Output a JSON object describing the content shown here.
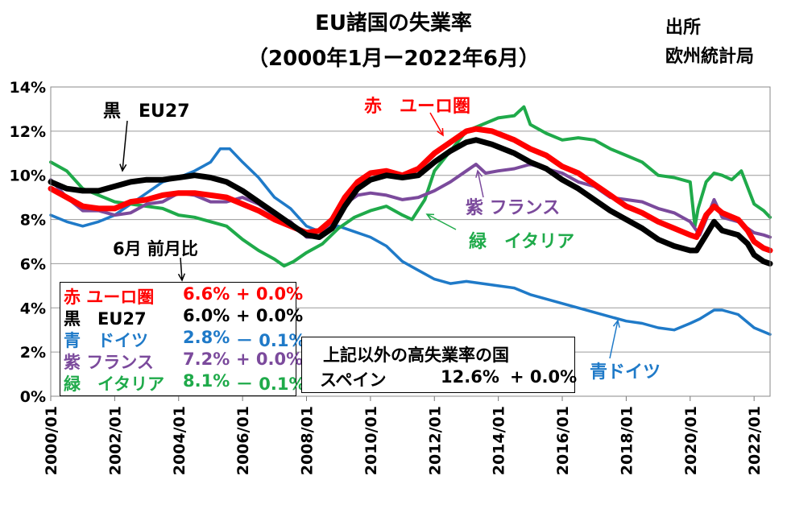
{
  "title_line1": "EU諸国の失業率",
  "title_line2": "（2000年1月ー2022年6月）",
  "source_line1": "出所",
  "source_line2": "欧州統計局",
  "chart_data": {
    "type": "line",
    "ylim": [
      0,
      14
    ],
    "y_ticks": [
      "0%",
      "2%",
      "4%",
      "6%",
      "8%",
      "10%",
      "12%",
      "14%"
    ],
    "x_ticks": [
      "2000/01",
      "2002/01",
      "2004/01",
      "2006/01",
      "2008/01",
      "2010/01",
      "2012/01",
      "2014/01",
      "2016/01",
      "2018/01",
      "2020/01",
      "2022/01"
    ],
    "x_range": [
      "2000/01",
      "2022/06"
    ],
    "grid": "horizontal",
    "series": [
      {
        "name": "EU27",
        "color": "#000000",
        "points": [
          [
            2000.0,
            9.7
          ],
          [
            2000.5,
            9.4
          ],
          [
            2001.0,
            9.3
          ],
          [
            2001.5,
            9.3
          ],
          [
            2002.0,
            9.5
          ],
          [
            2002.5,
            9.7
          ],
          [
            2003.0,
            9.8
          ],
          [
            2003.5,
            9.8
          ],
          [
            2004.0,
            9.9
          ],
          [
            2004.5,
            10.0
          ],
          [
            2005.0,
            9.9
          ],
          [
            2005.5,
            9.7
          ],
          [
            2006.0,
            9.3
          ],
          [
            2006.5,
            8.8
          ],
          [
            2007.0,
            8.3
          ],
          [
            2007.5,
            7.8
          ],
          [
            2008.0,
            7.3
          ],
          [
            2008.4,
            7.2
          ],
          [
            2008.8,
            7.6
          ],
          [
            2009.2,
            8.6
          ],
          [
            2009.6,
            9.4
          ],
          [
            2010.0,
            9.8
          ],
          [
            2010.5,
            10.0
          ],
          [
            2011.0,
            9.9
          ],
          [
            2011.5,
            10.0
          ],
          [
            2012.0,
            10.6
          ],
          [
            2012.5,
            11.1
          ],
          [
            2013.0,
            11.5
          ],
          [
            2013.3,
            11.6
          ],
          [
            2013.8,
            11.4
          ],
          [
            2014.5,
            11.0
          ],
          [
            2015.0,
            10.6
          ],
          [
            2015.5,
            10.3
          ],
          [
            2016.0,
            9.8
          ],
          [
            2016.5,
            9.4
          ],
          [
            2017.0,
            8.9
          ],
          [
            2017.5,
            8.4
          ],
          [
            2018.0,
            8.0
          ],
          [
            2018.5,
            7.6
          ],
          [
            2019.0,
            7.1
          ],
          [
            2019.5,
            6.8
          ],
          [
            2020.0,
            6.6
          ],
          [
            2020.2,
            6.6
          ],
          [
            2020.5,
            7.3
          ],
          [
            2020.75,
            7.9
          ],
          [
            2021.0,
            7.5
          ],
          [
            2021.5,
            7.3
          ],
          [
            2021.8,
            6.9
          ],
          [
            2022.0,
            6.4
          ],
          [
            2022.3,
            6.1
          ],
          [
            2022.5,
            6.0
          ]
        ]
      },
      {
        "name": "ユーロ圏",
        "color": "#ff0000",
        "points": [
          [
            2000.0,
            9.4
          ],
          [
            2000.5,
            9.0
          ],
          [
            2001.0,
            8.6
          ],
          [
            2001.5,
            8.5
          ],
          [
            2002.0,
            8.5
          ],
          [
            2002.5,
            8.8
          ],
          [
            2003.0,
            8.9
          ],
          [
            2003.5,
            9.1
          ],
          [
            2004.0,
            9.2
          ],
          [
            2004.5,
            9.2
          ],
          [
            2005.0,
            9.1
          ],
          [
            2005.5,
            9.0
          ],
          [
            2006.0,
            8.7
          ],
          [
            2006.5,
            8.4
          ],
          [
            2007.0,
            8.0
          ],
          [
            2007.5,
            7.7
          ],
          [
            2008.0,
            7.4
          ],
          [
            2008.4,
            7.5
          ],
          [
            2008.8,
            8.0
          ],
          [
            2009.2,
            9.0
          ],
          [
            2009.6,
            9.7
          ],
          [
            2010.0,
            10.1
          ],
          [
            2010.5,
            10.2
          ],
          [
            2011.0,
            10.0
          ],
          [
            2011.5,
            10.3
          ],
          [
            2012.0,
            11.0
          ],
          [
            2012.5,
            11.5
          ],
          [
            2013.0,
            12.0
          ],
          [
            2013.3,
            12.1
          ],
          [
            2013.8,
            12.0
          ],
          [
            2014.5,
            11.6
          ],
          [
            2015.0,
            11.2
          ],
          [
            2015.5,
            10.9
          ],
          [
            2016.0,
            10.4
          ],
          [
            2016.5,
            10.1
          ],
          [
            2017.0,
            9.6
          ],
          [
            2017.5,
            9.1
          ],
          [
            2018.0,
            8.6
          ],
          [
            2018.5,
            8.3
          ],
          [
            2019.0,
            7.9
          ],
          [
            2019.5,
            7.6
          ],
          [
            2020.0,
            7.3
          ],
          [
            2020.2,
            7.2
          ],
          [
            2020.5,
            8.2
          ],
          [
            2020.75,
            8.6
          ],
          [
            2021.0,
            8.3
          ],
          [
            2021.5,
            8.0
          ],
          [
            2021.8,
            7.5
          ],
          [
            2022.0,
            7.0
          ],
          [
            2022.3,
            6.7
          ],
          [
            2022.5,
            6.6
          ]
        ]
      },
      {
        "name": "ドイツ",
        "color": "#1f7ac8",
        "points": [
          [
            2000.0,
            8.2
          ],
          [
            2000.5,
            7.9
          ],
          [
            2001.0,
            7.7
          ],
          [
            2001.5,
            7.9
          ],
          [
            2002.0,
            8.2
          ],
          [
            2002.5,
            8.7
          ],
          [
            2003.0,
            9.2
          ],
          [
            2003.5,
            9.7
          ],
          [
            2004.0,
            9.9
          ],
          [
            2004.5,
            10.2
          ],
          [
            2005.0,
            10.6
          ],
          [
            2005.3,
            11.2
          ],
          [
            2005.6,
            11.2
          ],
          [
            2006.0,
            10.6
          ],
          [
            2006.5,
            9.9
          ],
          [
            2007.0,
            9.0
          ],
          [
            2007.5,
            8.5
          ],
          [
            2008.0,
            7.7
          ],
          [
            2008.5,
            7.4
          ],
          [
            2009.0,
            7.7
          ],
          [
            2009.4,
            7.5
          ],
          [
            2010.0,
            7.2
          ],
          [
            2010.5,
            6.8
          ],
          [
            2011.0,
            6.1
          ],
          [
            2011.5,
            5.7
          ],
          [
            2012.0,
            5.3
          ],
          [
            2012.5,
            5.1
          ],
          [
            2013.0,
            5.2
          ],
          [
            2013.5,
            5.1
          ],
          [
            2014.0,
            5.0
          ],
          [
            2014.5,
            4.9
          ],
          [
            2015.0,
            4.6
          ],
          [
            2015.5,
            4.4
          ],
          [
            2016.0,
            4.2
          ],
          [
            2016.5,
            4.0
          ],
          [
            2017.0,
            3.8
          ],
          [
            2017.5,
            3.6
          ],
          [
            2018.0,
            3.4
          ],
          [
            2018.5,
            3.3
          ],
          [
            2019.0,
            3.1
          ],
          [
            2019.5,
            3.0
          ],
          [
            2020.0,
            3.3
          ],
          [
            2020.3,
            3.5
          ],
          [
            2020.75,
            3.9
          ],
          [
            2021.0,
            3.9
          ],
          [
            2021.5,
            3.7
          ],
          [
            2022.0,
            3.1
          ],
          [
            2022.5,
            2.8
          ]
        ]
      },
      {
        "name": "フランス",
        "color": "#7b4a9c",
        "points": [
          [
            2000.0,
            9.8
          ],
          [
            2000.5,
            9.0
          ],
          [
            2001.0,
            8.4
          ],
          [
            2001.5,
            8.4
          ],
          [
            2002.0,
            8.2
          ],
          [
            2002.5,
            8.3
          ],
          [
            2003.0,
            8.7
          ],
          [
            2003.5,
            8.8
          ],
          [
            2004.0,
            9.2
          ],
          [
            2004.5,
            9.1
          ],
          [
            2005.0,
            8.8
          ],
          [
            2005.5,
            8.8
          ],
          [
            2006.0,
            9.0
          ],
          [
            2006.5,
            8.7
          ],
          [
            2007.0,
            8.2
          ],
          [
            2007.5,
            7.9
          ],
          [
            2008.0,
            7.2
          ],
          [
            2008.4,
            7.2
          ],
          [
            2008.8,
            7.8
          ],
          [
            2009.2,
            8.7
          ],
          [
            2009.6,
            9.1
          ],
          [
            2010.0,
            9.2
          ],
          [
            2010.5,
            9.1
          ],
          [
            2011.0,
            8.9
          ],
          [
            2011.5,
            9.0
          ],
          [
            2012.0,
            9.3
          ],
          [
            2012.5,
            9.7
          ],
          [
            2013.0,
            10.2
          ],
          [
            2013.3,
            10.5
          ],
          [
            2013.6,
            10.1
          ],
          [
            2014.0,
            10.2
          ],
          [
            2014.5,
            10.3
          ],
          [
            2015.0,
            10.5
          ],
          [
            2015.5,
            10.3
          ],
          [
            2016.0,
            10.1
          ],
          [
            2016.5,
            9.7
          ],
          [
            2017.0,
            9.5
          ],
          [
            2017.5,
            9.0
          ],
          [
            2018.0,
            8.9
          ],
          [
            2018.5,
            8.8
          ],
          [
            2019.0,
            8.5
          ],
          [
            2019.5,
            8.3
          ],
          [
            2020.0,
            7.9
          ],
          [
            2020.3,
            7.3
          ],
          [
            2020.5,
            8.0
          ],
          [
            2020.75,
            8.9
          ],
          [
            2021.0,
            8.1
          ],
          [
            2021.5,
            7.9
          ],
          [
            2022.0,
            7.4
          ],
          [
            2022.3,
            7.3
          ],
          [
            2022.5,
            7.2
          ]
        ]
      },
      {
        "name": "イタリア",
        "color": "#1faa4a",
        "points": [
          [
            2000.0,
            10.6
          ],
          [
            2000.5,
            10.2
          ],
          [
            2001.0,
            9.4
          ],
          [
            2001.5,
            9.1
          ],
          [
            2002.0,
            8.8
          ],
          [
            2002.5,
            8.7
          ],
          [
            2003.0,
            8.6
          ],
          [
            2003.5,
            8.5
          ],
          [
            2004.0,
            8.2
          ],
          [
            2004.5,
            8.1
          ],
          [
            2005.0,
            7.9
          ],
          [
            2005.5,
            7.7
          ],
          [
            2006.0,
            7.1
          ],
          [
            2006.5,
            6.6
          ],
          [
            2007.0,
            6.2
          ],
          [
            2007.3,
            5.9
          ],
          [
            2007.6,
            6.1
          ],
          [
            2008.0,
            6.5
          ],
          [
            2008.5,
            6.9
          ],
          [
            2009.0,
            7.6
          ],
          [
            2009.5,
            8.1
          ],
          [
            2010.0,
            8.4
          ],
          [
            2010.5,
            8.6
          ],
          [
            2011.0,
            8.2
          ],
          [
            2011.3,
            8.0
          ],
          [
            2011.7,
            8.9
          ],
          [
            2012.0,
            10.2
          ],
          [
            2012.5,
            11.1
          ],
          [
            2013.0,
            12.0
          ],
          [
            2013.5,
            12.3
          ],
          [
            2014.0,
            12.6
          ],
          [
            2014.5,
            12.7
          ],
          [
            2014.8,
            13.1
          ],
          [
            2015.0,
            12.3
          ],
          [
            2015.5,
            11.9
          ],
          [
            2016.0,
            11.6
          ],
          [
            2016.5,
            11.7
          ],
          [
            2017.0,
            11.6
          ],
          [
            2017.5,
            11.2
          ],
          [
            2018.0,
            10.9
          ],
          [
            2018.5,
            10.6
          ],
          [
            2019.0,
            10.0
          ],
          [
            2019.5,
            9.9
          ],
          [
            2020.0,
            9.7
          ],
          [
            2020.15,
            7.7
          ],
          [
            2020.25,
            8.5
          ],
          [
            2020.5,
            9.7
          ],
          [
            2020.75,
            10.1
          ],
          [
            2021.0,
            10.0
          ],
          [
            2021.3,
            9.8
          ],
          [
            2021.6,
            10.2
          ],
          [
            2022.0,
            8.7
          ],
          [
            2022.3,
            8.4
          ],
          [
            2022.5,
            8.1
          ]
        ]
      }
    ]
  },
  "annotations": {
    "eu27": "黒　EU27",
    "eurozone": "赤　ユーロ圏",
    "france": "紫 フランス",
    "italy": "緑　イタリア",
    "germany": "青ドイツ"
  },
  "summary_box": {
    "header": "6月 前月比",
    "rows": [
      {
        "label": "赤 ユーロ圏",
        "value": "6.6%",
        "change": "+ 0.0%",
        "color": "#ff0000"
      },
      {
        "label": "黒　EU27",
        "value": "6.0%",
        "change": "+ 0.0%",
        "color": "#000000"
      },
      {
        "label": "青　ドイツ",
        "value": "2.8%",
        "change": "－ 0.1%",
        "color": "#1f7ac8"
      },
      {
        "label": "紫 フランス",
        "value": "7.2%",
        "change": "+ 0.0%",
        "color": "#7b4a9c"
      },
      {
        "label": "緑　イタリア",
        "value": "8.1%",
        "change": "－ 0.1%",
        "color": "#1faa4a"
      }
    ]
  },
  "spain_box": {
    "header": "上記以外の高失業率の国",
    "label": "スペイン",
    "value": "12.6%",
    "change": "+ 0.0%"
  }
}
